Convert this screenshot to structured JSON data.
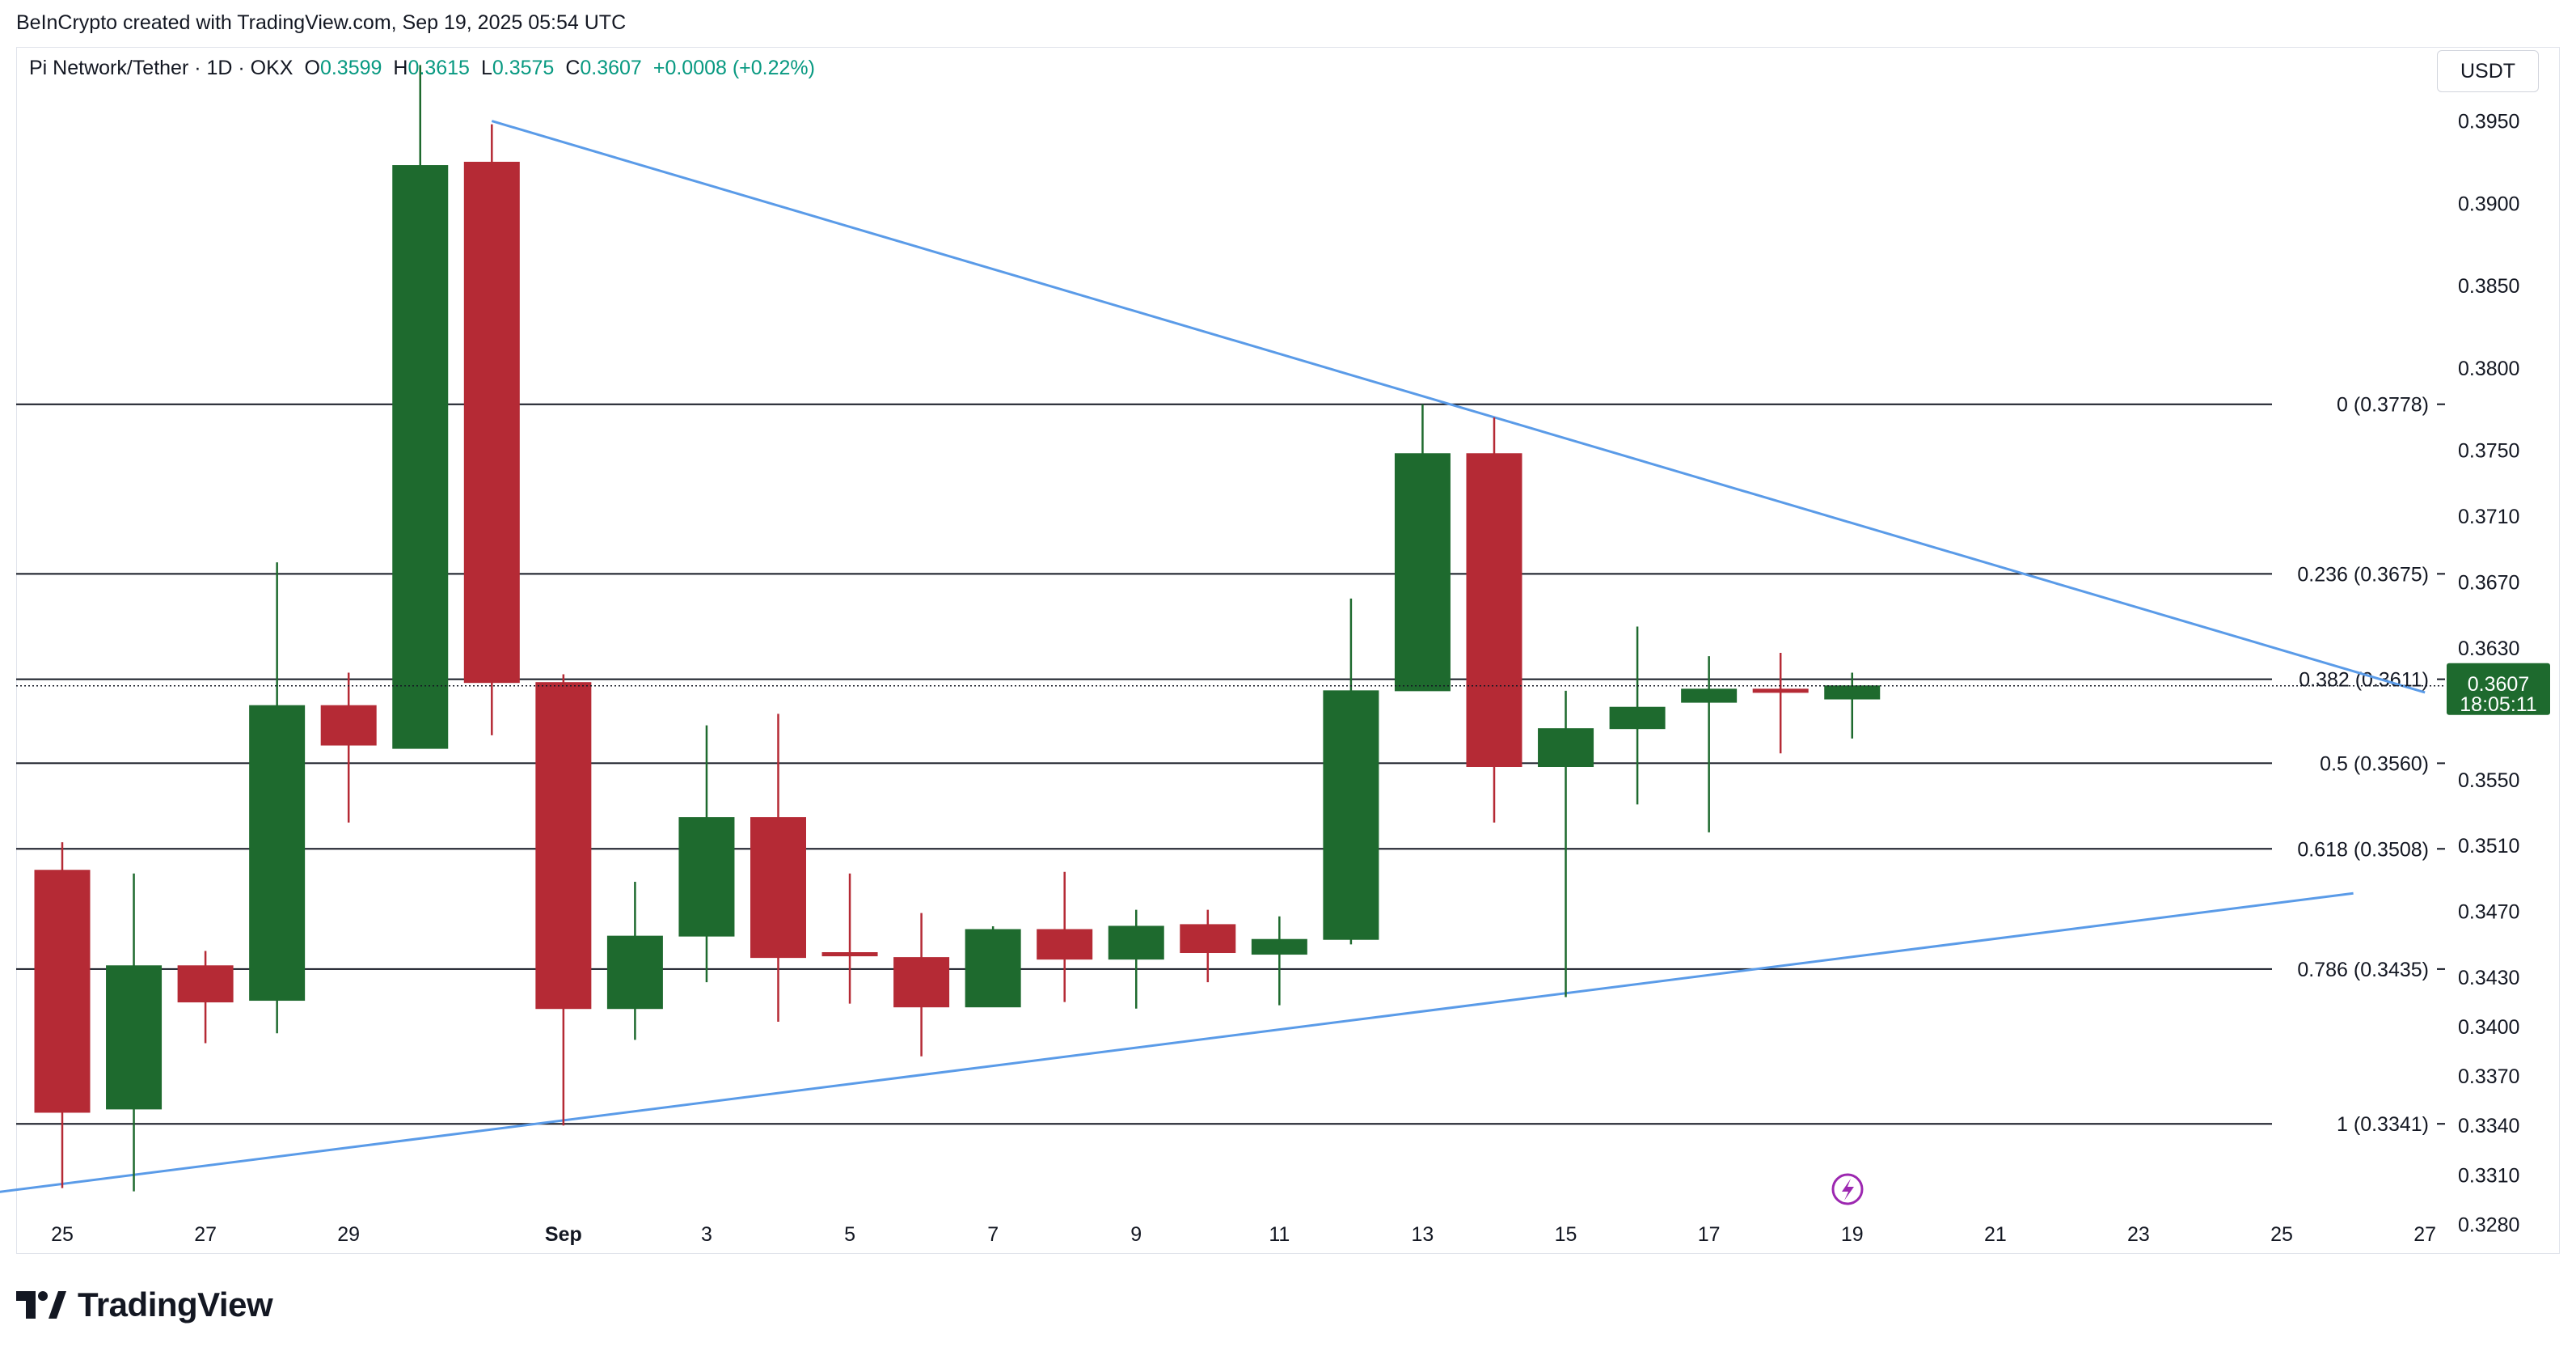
{
  "header": {
    "credit": "BeInCrypto created with TradingView.com, Sep 19, 2025 05:54 UTC"
  },
  "legend": {
    "symbol": "Pi Network/Tether · 1D · OKX",
    "o_label": "O",
    "o_value": "0.3599",
    "h_label": "H",
    "h_value": "0.3615",
    "l_label": "L",
    "l_value": "0.3575",
    "c_label": "C",
    "c_value": "0.3607",
    "change": "+0.0008 (+0.22%)"
  },
  "currency_button": "USDT",
  "last_price": {
    "value": "0.3607",
    "countdown": "18:05:11"
  },
  "footer": {
    "brand": "TradingView"
  },
  "colors": {
    "up": "#1e6a2e",
    "down": "#b52a35",
    "trendline": "#5a9be8",
    "fib": "#131722",
    "text": "#131722"
  },
  "chart_data": {
    "type": "candlestick",
    "x_tick_labels": [
      "25",
      "27",
      "29",
      "Sep",
      "3",
      "5",
      "7",
      "9",
      "11",
      "13",
      "15",
      "17",
      "19",
      "21",
      "23",
      "25",
      "27"
    ],
    "y_tick_labels": [
      "0.3950",
      "0.3900",
      "0.3850",
      "0.3800",
      "0.3750",
      "0.3710",
      "0.3670",
      "0.3630",
      "0.3550",
      "0.3510",
      "0.3470",
      "0.3430",
      "0.3400",
      "0.3370",
      "0.3340",
      "0.3310",
      "0.3280"
    ],
    "ylim": [
      0.3262,
      0.3995
    ],
    "candles": [
      {
        "date": "Aug 25",
        "o": 0.3495,
        "h": 0.3512,
        "l": 0.3302,
        "c": 0.3348
      },
      {
        "date": "Aug 26",
        "o": 0.335,
        "h": 0.3493,
        "l": 0.33,
        "c": 0.3437
      },
      {
        "date": "Aug 27",
        "o": 0.3437,
        "h": 0.3446,
        "l": 0.339,
        "c": 0.3415
      },
      {
        "date": "Aug 28",
        "o": 0.3416,
        "h": 0.3682,
        "l": 0.3396,
        "c": 0.3595
      },
      {
        "date": "Aug 29",
        "o": 0.3595,
        "h": 0.3615,
        "l": 0.3524,
        "c": 0.3571
      },
      {
        "date": "Aug 30",
        "o": 0.3569,
        "h": 0.3984,
        "l": 0.3569,
        "c": 0.3923
      },
      {
        "date": "Aug 31",
        "o": 0.3925,
        "h": 0.3948,
        "l": 0.3577,
        "c": 0.3609
      },
      {
        "date": "Sep 1",
        "o": 0.3609,
        "h": 0.3614,
        "l": 0.334,
        "c": 0.3411
      },
      {
        "date": "Sep 2",
        "o": 0.3411,
        "h": 0.3488,
        "l": 0.3392,
        "c": 0.3455
      },
      {
        "date": "Sep 3",
        "o": 0.3455,
        "h": 0.3583,
        "l": 0.3427,
        "c": 0.3527
      },
      {
        "date": "Sep 4",
        "o": 0.3527,
        "h": 0.359,
        "l": 0.3403,
        "c": 0.3442
      },
      {
        "date": "Sep 5",
        "o": 0.3445,
        "h": 0.3493,
        "l": 0.3414,
        "c": 0.3443
      },
      {
        "date": "Sep 6",
        "o": 0.3442,
        "h": 0.3469,
        "l": 0.3382,
        "c": 0.3412
      },
      {
        "date": "Sep 7",
        "o": 0.3412,
        "h": 0.3461,
        "l": 0.3412,
        "c": 0.3459
      },
      {
        "date": "Sep 8",
        "o": 0.3459,
        "h": 0.3494,
        "l": 0.3415,
        "c": 0.3441
      },
      {
        "date": "Sep 9",
        "o": 0.3441,
        "h": 0.3471,
        "l": 0.3411,
        "c": 0.3461
      },
      {
        "date": "Sep 10",
        "o": 0.3462,
        "h": 0.3471,
        "l": 0.3427,
        "c": 0.3445
      },
      {
        "date": "Sep 11",
        "o": 0.3444,
        "h": 0.3467,
        "l": 0.3413,
        "c": 0.3453
      },
      {
        "date": "Sep 12",
        "o": 0.3453,
        "h": 0.366,
        "l": 0.345,
        "c": 0.3604
      },
      {
        "date": "Sep 13",
        "o": 0.3604,
        "h": 0.3778,
        "l": 0.3604,
        "c": 0.3748
      },
      {
        "date": "Sep 14",
        "o": 0.3748,
        "h": 0.377,
        "l": 0.3524,
        "c": 0.3558
      },
      {
        "date": "Sep 15",
        "o": 0.3558,
        "h": 0.3604,
        "l": 0.3418,
        "c": 0.3581
      },
      {
        "date": "Sep 16",
        "o": 0.3581,
        "h": 0.3643,
        "l": 0.3535,
        "c": 0.3594
      },
      {
        "date": "Sep 17",
        "o": 0.3597,
        "h": 0.3625,
        "l": 0.3518,
        "c": 0.3605
      },
      {
        "date": "Sep 18",
        "o": 0.3605,
        "h": 0.3627,
        "l": 0.3566,
        "c": 0.3603
      },
      {
        "date": "Sep 19",
        "o": 0.3599,
        "h": 0.3615,
        "l": 0.3575,
        "c": 0.3607
      }
    ],
    "fib_levels": [
      {
        "ratio": "0",
        "price": 0.3778,
        "label": "0 (0.3778)"
      },
      {
        "ratio": "0.236",
        "price": 0.3675,
        "label": "0.236 (0.3675)"
      },
      {
        "ratio": "0.382",
        "price": 0.3611,
        "label": "0.382 (0.3611)"
      },
      {
        "ratio": "0.5",
        "price": 0.356,
        "label": "0.5 (0.3560)"
      },
      {
        "ratio": "0.618",
        "price": 0.3508,
        "label": "0.618 (0.3508)"
      },
      {
        "ratio": "0.786",
        "price": 0.3435,
        "label": "0.786 (0.3435)"
      },
      {
        "ratio": "1",
        "price": 0.3341,
        "label": "1 (0.3341)"
      }
    ],
    "trendlines": [
      {
        "name": "",
        "from": {
          "date": "Aug 31",
          "price": 0.395
        },
        "to": {
          "date": "Sep 27",
          "price": 0.3603
        }
      },
      {
        "name": "",
        "from": {
          "date": "Aug 24",
          "price": 0.3299
        },
        "to": {
          "date": "Sep 26",
          "price": 0.3481
        }
      }
    ],
    "last_price_line": 0.3607
  }
}
